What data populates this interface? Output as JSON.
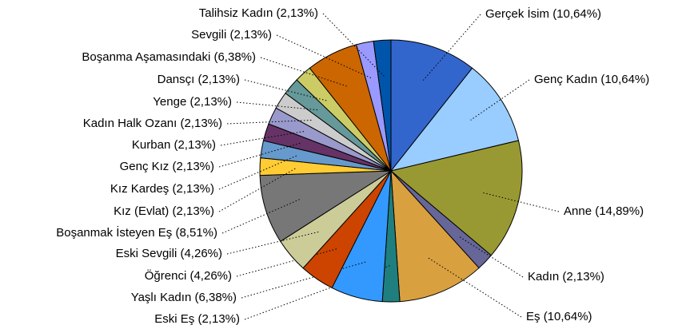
{
  "chart_data": {
    "type": "pie",
    "categories": [
      "Gerçek İsim",
      "Genç Kadın",
      "Anne",
      "Kadın",
      "Eş",
      "Eski Eş",
      "Yaşlı Kadın",
      "Öğrenci",
      "Eski Sevgili",
      "Boşanmak İsteyen Eş",
      "Kız (Evlat)",
      "Kız Kardeş",
      "Genç Kız",
      "Kurban",
      "Kadın Halk Ozanı",
      "Yenge",
      "Dansçı",
      "Boşanma Aşamasındaki",
      "Sevgili",
      "Talihsiz Kadın"
    ],
    "values": [
      10.64,
      10.64,
      14.89,
      2.13,
      10.64,
      2.13,
      6.38,
      4.26,
      4.26,
      8.51,
      2.13,
      2.13,
      2.13,
      2.13,
      2.13,
      2.13,
      2.13,
      6.38,
      2.13,
      2.13
    ],
    "value_labels": [
      "(10,64%)",
      "(10,64%)",
      "(14,89%)",
      "(2,13%)",
      "(10,64%)",
      "(2,13%)",
      "(6,38%)",
      "(4,26%)",
      "(4,26%)",
      "(8,51%)",
      "(2,13%)",
      "(2,13%)",
      "(2,13%)",
      "(2,13%)",
      "(2,13%)",
      "(2,13%)",
      "(2,13%)",
      "(6,38%)",
      "(2,13%)",
      "(2,13%)"
    ],
    "colors": [
      "#3366cc",
      "#99ccff",
      "#999933",
      "#666699",
      "#d9a040",
      "#1f7f7f",
      "#3399ff",
      "#cc4400",
      "#cccc99",
      "#777777",
      "#ffcc33",
      "#6699cc",
      "#663366",
      "#9999cc",
      "#cccccc",
      "#669999",
      "#cccc66",
      "#cc6600",
      "#9999ff",
      "#0055aa"
    ]
  }
}
